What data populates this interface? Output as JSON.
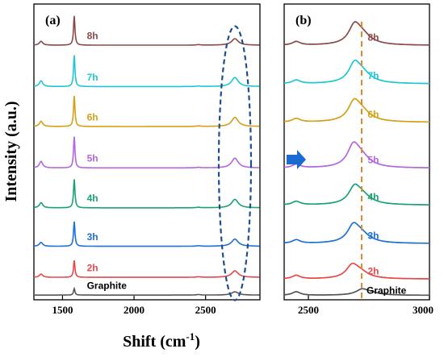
{
  "figure": {
    "ylabel": "Intensity (a.u.)",
    "xlabel": "Shift (cm",
    "xlabel_sup": "-1",
    "xlabel_close": ")"
  },
  "chart_data": [
    {
      "type": "line",
      "panel_label": "(a)",
      "xlim": [
        1300,
        2880
      ],
      "x_ticks": [
        1500,
        2000,
        2500
      ],
      "highlight": "dashed ellipse around the 2D band near 2700",
      "highlight_color": "#1f4e8c",
      "series": [
        {
          "name": "8h",
          "color": "#8b4a4a",
          "level": 0.86,
          "g": 0.45,
          "d": 0.06,
          "d2": 0.1
        },
        {
          "name": "7h",
          "color": "#1ec8d2",
          "level": 0.72,
          "g": 0.48,
          "d": 0.09,
          "d2": 0.14
        },
        {
          "name": "6h",
          "color": "#d4a017",
          "level": 0.585,
          "g": 0.47,
          "d": 0.08,
          "d2": 0.14
        },
        {
          "name": "5h",
          "color": "#b366e0",
          "level": 0.445,
          "g": 0.48,
          "d": 0.1,
          "d2": 0.15
        },
        {
          "name": "4h",
          "color": "#1aa370",
          "level": 0.31,
          "g": 0.44,
          "d": 0.08,
          "d2": 0.13
        },
        {
          "name": "3h",
          "color": "#1f6fd6",
          "level": 0.18,
          "g": 0.38,
          "d": 0.06,
          "d2": 0.11
        },
        {
          "name": "2h",
          "color": "#e84848",
          "level": 0.075,
          "g": 0.26,
          "d": 0.05,
          "d2": 0.1
        },
        {
          "name": "Graphite",
          "color": "#555555",
          "level": 0.015,
          "g": 0.1,
          "d": 0.0,
          "d2": 0.05
        }
      ]
    },
    {
      "type": "line",
      "panel_label": "(b)",
      "xlim": [
        2400,
        3000
      ],
      "x_ticks": [
        2500,
        3000
      ],
      "reference_line": "vertical dashed line near 2720",
      "reference_color": "#e08a28",
      "arrow_color": "#1a6bd1",
      "series": [
        {
          "name": "8h",
          "color": "#8b4a4a",
          "level": 0.86,
          "peak": 2690,
          "height": 0.09
        },
        {
          "name": "7h",
          "color": "#1ec8d2",
          "level": 0.73,
          "peak": 2690,
          "height": 0.09
        },
        {
          "name": "6h",
          "color": "#d4a017",
          "level": 0.6,
          "peak": 2688,
          "height": 0.09
        },
        {
          "name": "5h",
          "color": "#b366e0",
          "level": 0.445,
          "peak": 2685,
          "height": 0.1
        },
        {
          "name": "4h",
          "color": "#1aa370",
          "level": 0.32,
          "peak": 2690,
          "height": 0.08
        },
        {
          "name": "3h",
          "color": "#1f6fd6",
          "level": 0.19,
          "peak": 2685,
          "height": 0.08
        },
        {
          "name": "2h",
          "color": "#e84848",
          "level": 0.07,
          "peak": 2680,
          "height": 0.06
        },
        {
          "name": "Graphite",
          "color": "#555555",
          "level": 0.015,
          "peak": 2720,
          "height": 0.025
        }
      ]
    }
  ]
}
